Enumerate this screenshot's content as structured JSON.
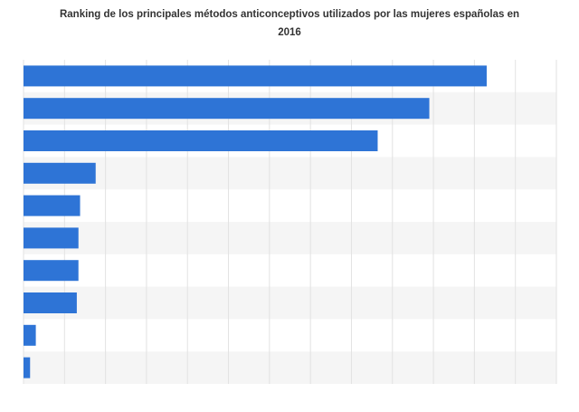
{
  "chart_data": {
    "type": "bar",
    "orientation": "horizontal",
    "title": "Ranking de los principales métodos anticonceptivos utilizados por las mujeres españolas en 2016",
    "values": [
      56.5,
      49.5,
      43.2,
      8.8,
      6.9,
      6.7,
      6.7,
      6.5,
      1.5,
      0.8
    ],
    "xlim": [
      0,
      65
    ],
    "grid": true,
    "colors": {
      "bar": "#2e74d6",
      "band": "#f5f5f5",
      "grid": "#e2e2e2"
    }
  }
}
